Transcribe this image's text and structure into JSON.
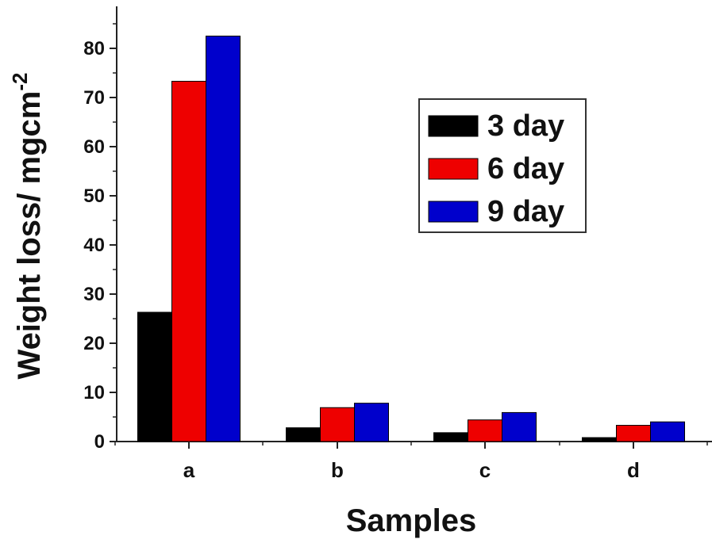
{
  "chart_data": {
    "type": "bar",
    "categories": [
      "a",
      "b",
      "c",
      "d"
    ],
    "series": [
      {
        "name": "3 day",
        "color": "#000000",
        "values": [
          26.3,
          2.8,
          1.8,
          0.8
        ]
      },
      {
        "name": "6 day",
        "color": "#ee0000",
        "values": [
          73.3,
          6.9,
          4.4,
          3.3
        ]
      },
      {
        "name": "9 day",
        "color": "#0000cc",
        "values": [
          82.5,
          7.8,
          5.9,
          4.0
        ]
      }
    ],
    "xlabel": "Samples",
    "ylabel": {
      "text": "Weight loss/ mgcm",
      "superscript": "-2"
    },
    "ylim": [
      0,
      90
    ],
    "yticks": [
      "0",
      "10",
      "20",
      "30",
      "40",
      "50",
      "60",
      "70",
      "80"
    ],
    "grid": false,
    "legend_position": "top-right"
  }
}
